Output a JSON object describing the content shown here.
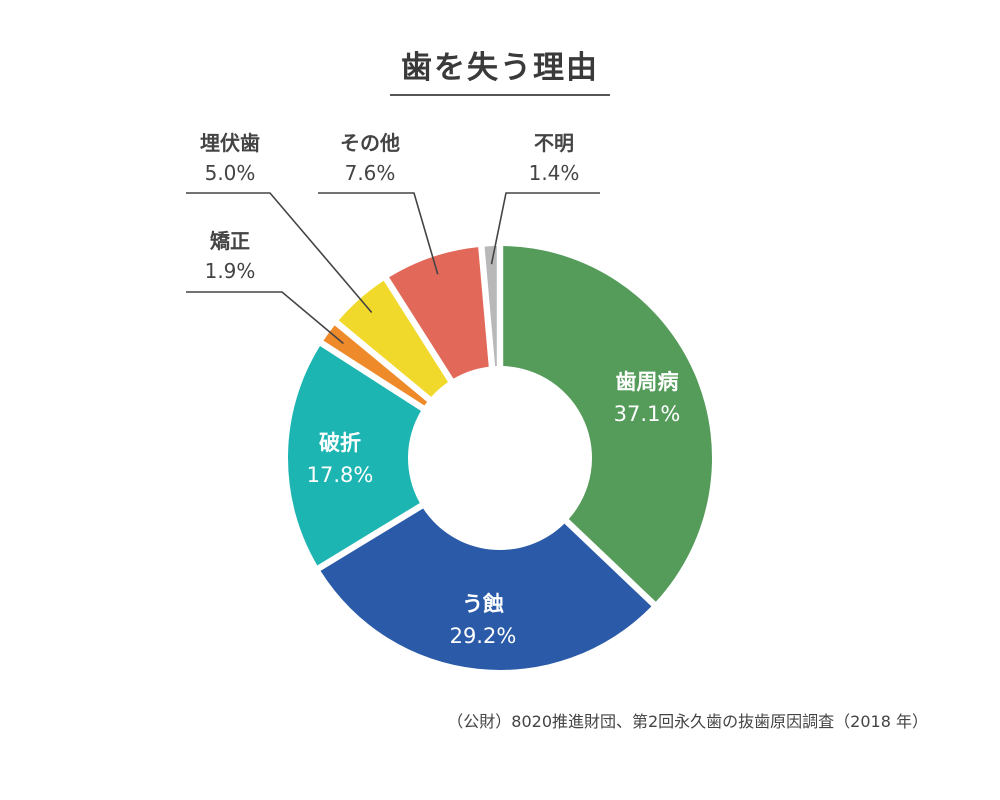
{
  "chart_data": {
    "type": "pie",
    "donut": true,
    "title": "歯を失う理由",
    "unit": "%",
    "slices": [
      {
        "label": "歯周病",
        "value": 37.1,
        "color": "#559c5b"
      },
      {
        "label": "う蝕",
        "value": 29.2,
        "color": "#2b5ba8"
      },
      {
        "label": "破折",
        "value": 17.8,
        "color": "#1db5b2"
      },
      {
        "label": "矯正",
        "value": 1.9,
        "color": "#ee8a2a"
      },
      {
        "label": "埋伏歯",
        "value": 5.0,
        "color": "#f1d92c"
      },
      {
        "label": "その他",
        "value": 7.6,
        "color": "#e2695a"
      },
      {
        "label": "不明",
        "value": 1.4,
        "color": "#b8b8b8"
      }
    ],
    "source": "（公財）8020推進財団、第2回永久歯の抜歯原因調査（2018 年）"
  }
}
